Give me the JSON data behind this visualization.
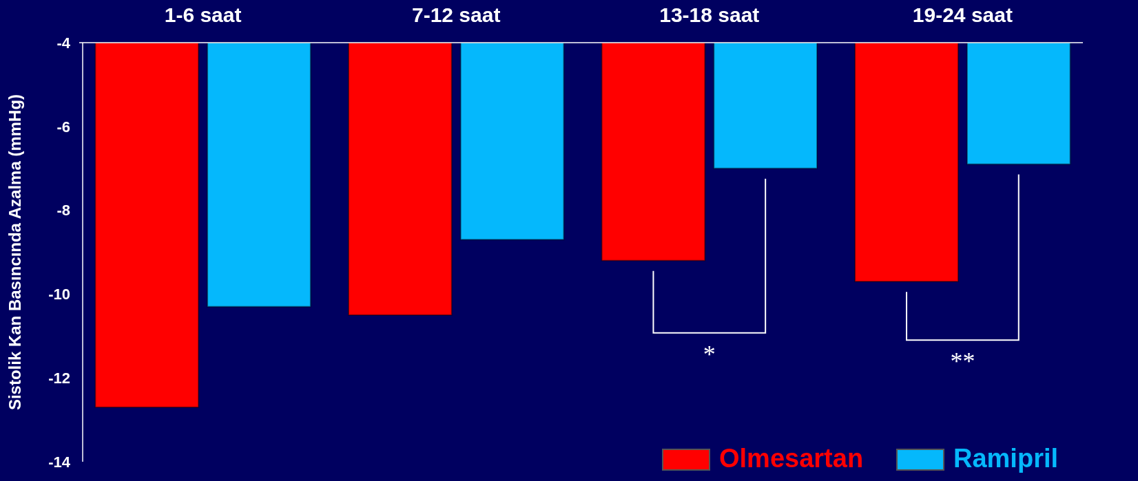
{
  "chart_data": {
    "type": "bar",
    "ylabel": "Sistolik Kan Basıncında Azalma (mmHg)",
    "categories": [
      "1-6 saat",
      "7-12 saat",
      "13-18 saat",
      "19-24 saat"
    ],
    "series": [
      {
        "name": "Olmesartan",
        "color": "#ff0000",
        "base": [
          -4,
          -4,
          -4,
          -4
        ],
        "values": [
          -8.7,
          -6.5,
          -5.2,
          -5.7
        ]
      },
      {
        "name": "Ramipril",
        "color": "#05b8fc",
        "base": [
          -4,
          -4,
          -4,
          -4
        ],
        "values": [
          -6.3,
          -4.7,
          -3.0,
          -2.9
        ]
      }
    ],
    "ylim": [
      -14,
      -4
    ],
    "yticks": [
      -14,
      -12,
      -10,
      -8,
      -6,
      -4
    ],
    "legend": "bottom right",
    "annotations": [
      "*",
      "**"
    ]
  }
}
